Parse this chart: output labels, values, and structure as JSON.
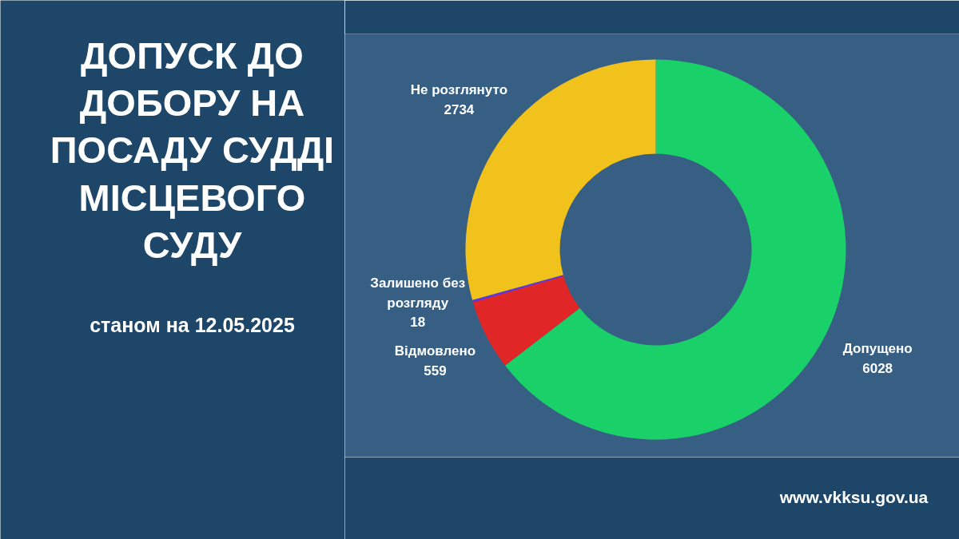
{
  "chart_data": {
    "type": "donut",
    "title": "ДОПУСК ДО ДОБОРУ НА ПОСАДУ СУДДІ МІСЦЕВОГО СУДУ",
    "subtitle": "станом на 12.05.2025",
    "categories": [
      "Допущено",
      "Відмовлено",
      "Залишено без розгляду",
      "Не розглянуто"
    ],
    "values": [
      6028,
      559,
      18,
      2734
    ],
    "colors": [
      "#1ad068",
      "#e02626",
      "#5b34ec",
      "#f2c21c"
    ],
    "data_labels": true,
    "annotations": [
      "www.vkksu.gov.ua"
    ]
  }
}
